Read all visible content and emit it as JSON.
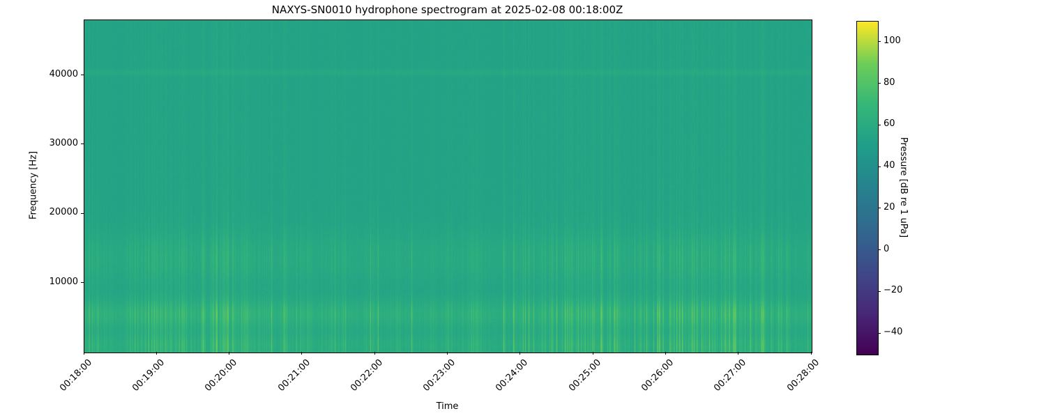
{
  "figure": {
    "title": "NAXYS-SN0010 hydrophone spectrogram at 2025-02-08 00:18:00Z",
    "xlabel": "Time",
    "ylabel": "Frequency [Hz]",
    "colorbar_label": "Pressure [dB re 1 uPa]"
  },
  "chart_data": {
    "type": "heatmap",
    "subtype": "hydrophone spectrogram",
    "title": "NAXYS-SN0010 hydrophone spectrogram at 2025-02-08 00:18:00Z",
    "xlabel": "Time",
    "ylabel": "Frequency [Hz]",
    "x_tick_labels": [
      "00:18:00",
      "00:19:00",
      "00:20:00",
      "00:21:00",
      "00:22:00",
      "00:23:00",
      "00:24:00",
      "00:25:00",
      "00:26:00",
      "00:27:00",
      "00:28:00"
    ],
    "y_ticks": [
      10000,
      20000,
      30000,
      40000
    ],
    "y_tick_labels": [
      "10000",
      "20000",
      "30000",
      "40000"
    ],
    "ylim": [
      0,
      48000
    ],
    "time_span_minutes": 10,
    "colormap": "viridis",
    "grid": false,
    "colorbar": {
      "label": "Pressure [dB re 1 uPa]",
      "position": "right",
      "vmin": -50,
      "vmax": 110,
      "ticks": [
        100,
        80,
        60,
        40,
        20,
        0,
        -20,
        -40
      ],
      "tick_labels": [
        "100",
        "80",
        "60",
        "40",
        "20",
        "0",
        "−20",
        "−40"
      ]
    },
    "background_level_db": 54,
    "features": {
      "description": "Teal background (~54 dB) with dense vertical broadband transient streaks at all times, strongest below ~8 kHz; bright intermittent band near 5-6 kHz; secondary band near 13-15 kHz; bright strip below ~2.5 kHz; faint steady tonal line near 40.5 kHz.",
      "streak_max_extra_db": 20,
      "bands": [
        {
          "center_hz": 5600,
          "width_hz": 3000,
          "peak_db": 90,
          "streak_coupled": true
        },
        {
          "center_hz": 13800,
          "width_hz": 5200,
          "peak_db": 74,
          "streak_coupled": true
        },
        {
          "center_hz": 1100,
          "width_hz": 2600,
          "peak_db": 80,
          "streak_coupled": true
        },
        {
          "center_hz": 40500,
          "width_hz": 600,
          "peak_db": 59,
          "streak_coupled": false
        }
      ]
    }
  }
}
